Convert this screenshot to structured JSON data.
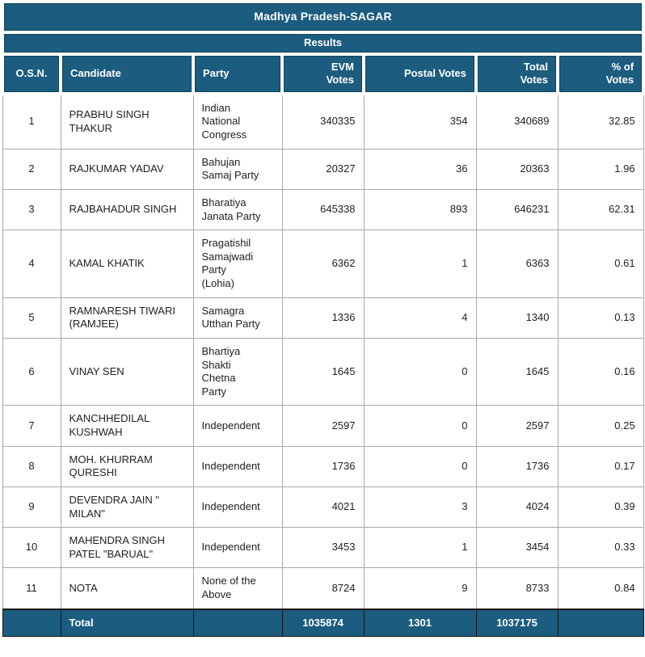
{
  "title": "Madhya Pradesh-SAGAR",
  "subtitle": "Results",
  "colors": {
    "header_bg": "#1B5C7F",
    "header_text": "#ffffff",
    "body_border": "#a8a8a8",
    "total_border": "#161616",
    "body_text": "#212121"
  },
  "table": {
    "columns": [
      {
        "key": "osn",
        "label": "O.S.N.",
        "align": "ac"
      },
      {
        "key": "candidate",
        "label": "Candidate",
        "align": "al"
      },
      {
        "key": "party",
        "label": "Party",
        "align": "al"
      },
      {
        "key": "evm",
        "label": "EVM\nVotes",
        "align": "ar"
      },
      {
        "key": "postal",
        "label": "Postal Votes",
        "align": "ar"
      },
      {
        "key": "total",
        "label": "Total\nVotes",
        "align": "ar"
      },
      {
        "key": "pct",
        "label": "% of\nVotes",
        "align": "ar"
      }
    ],
    "rows": [
      {
        "osn": "1",
        "candidate": "PRABHU SINGH\nTHAKUR",
        "party": "Indian\nNational\nCongress",
        "evm": "340335",
        "postal": "354",
        "total": "340689",
        "pct": "32.85"
      },
      {
        "osn": "2",
        "candidate": "RAJKUMAR YADAV",
        "party": "Bahujan\nSamaj Party",
        "evm": "20327",
        "postal": "36",
        "total": "20363",
        "pct": "1.96"
      },
      {
        "osn": "3",
        "candidate": "RAJBAHADUR SINGH",
        "party": "Bharatiya\nJanata Party",
        "evm": "645338",
        "postal": "893",
        "total": "646231",
        "pct": "62.31"
      },
      {
        "osn": "4",
        "candidate": "KAMAL KHATIK",
        "party": "Pragatishil\nSamajwadi\nParty\n(Lohia)",
        "evm": "6362",
        "postal": "1",
        "total": "6363",
        "pct": "0.61"
      },
      {
        "osn": "5",
        "candidate": "RAMNARESH TIWARI\n(RAMJEE)",
        "party": "Samagra\nUtthan Party",
        "evm": "1336",
        "postal": "4",
        "total": "1340",
        "pct": "0.13"
      },
      {
        "osn": "6",
        "candidate": "VINAY SEN",
        "party": "Bhartiya\nShakti\nChetna\nParty",
        "evm": "1645",
        "postal": "0",
        "total": "1645",
        "pct": "0.16"
      },
      {
        "osn": "7",
        "candidate": "KANCHHEDILAL\nKUSHWAH",
        "party": "Independent",
        "evm": "2597",
        "postal": "0",
        "total": "2597",
        "pct": "0.25"
      },
      {
        "osn": "8",
        "candidate": "MOH. KHURRAM\nQURESHI",
        "party": "Independent",
        "evm": "1736",
        "postal": "0",
        "total": "1736",
        "pct": "0.17"
      },
      {
        "osn": "9",
        "candidate": "DEVENDRA JAIN \"\nMILAN\"",
        "party": "Independent",
        "evm": "4021",
        "postal": "3",
        "total": "4024",
        "pct": "0.39"
      },
      {
        "osn": "10",
        "candidate": "MAHENDRA SINGH\nPATEL \"BARUAL\"",
        "party": "Independent",
        "evm": "3453",
        "postal": "1",
        "total": "3454",
        "pct": "0.33"
      },
      {
        "osn": "11",
        "candidate": "NOTA",
        "party": "None of the\nAbove",
        "evm": "8724",
        "postal": "9",
        "total": "8733",
        "pct": "0.84"
      }
    ],
    "total_row": {
      "osn": "",
      "candidate": "Total",
      "party": "",
      "evm": "1035874",
      "postal": "1301",
      "total": "1037175",
      "pct": ""
    }
  }
}
